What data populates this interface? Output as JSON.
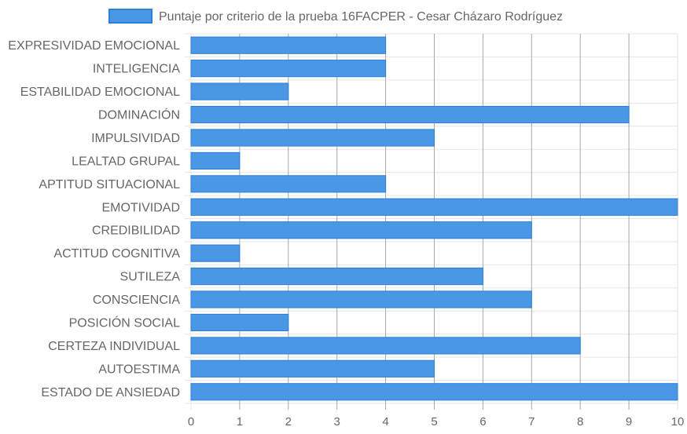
{
  "chart_data": {
    "type": "bar",
    "orientation": "horizontal",
    "title": "",
    "xlabel": "",
    "ylabel": "",
    "xlim": [
      0,
      10
    ],
    "x_ticks": [
      "0",
      "1",
      "2",
      "3",
      "4",
      "5",
      "6",
      "7",
      "8",
      "9",
      "10"
    ],
    "grid": true,
    "legend_position": "top",
    "categories": [
      "EXPRESIVIDAD EMOCIONAL",
      "INTELIGENCIA",
      "ESTABILIDAD EMOCIONAL",
      "DOMINACIÓN",
      "IMPULSIVIDAD",
      "LEALTAD GRUPAL",
      "APTITUD SITUACIONAL",
      "EMOTIVIDAD",
      "CREDIBILIDAD",
      "ACTITUD COGNITIVA",
      "SUTILEZA",
      "CONSCIENCIA",
      "POSICIÓN SOCIAL",
      "CERTEZA INDIVIDUAL",
      "AUTOESTIMA",
      "ESTADO DE ANSIEDAD"
    ],
    "series": [
      {
        "name": "Puntaje por criterio de la prueba 16FACPER - Cesar Cházaro Rodríguez",
        "color": "#4a97e6",
        "border_color": "#2a7fd8",
        "values": [
          4,
          4,
          2,
          9,
          5,
          1,
          4,
          10,
          7,
          1,
          6,
          7,
          2,
          8,
          5,
          10
        ]
      }
    ],
    "colors": {
      "grid": "#e6e6e6",
      "grid_dark": "#a8a8a8",
      "text": "#666666"
    }
  }
}
